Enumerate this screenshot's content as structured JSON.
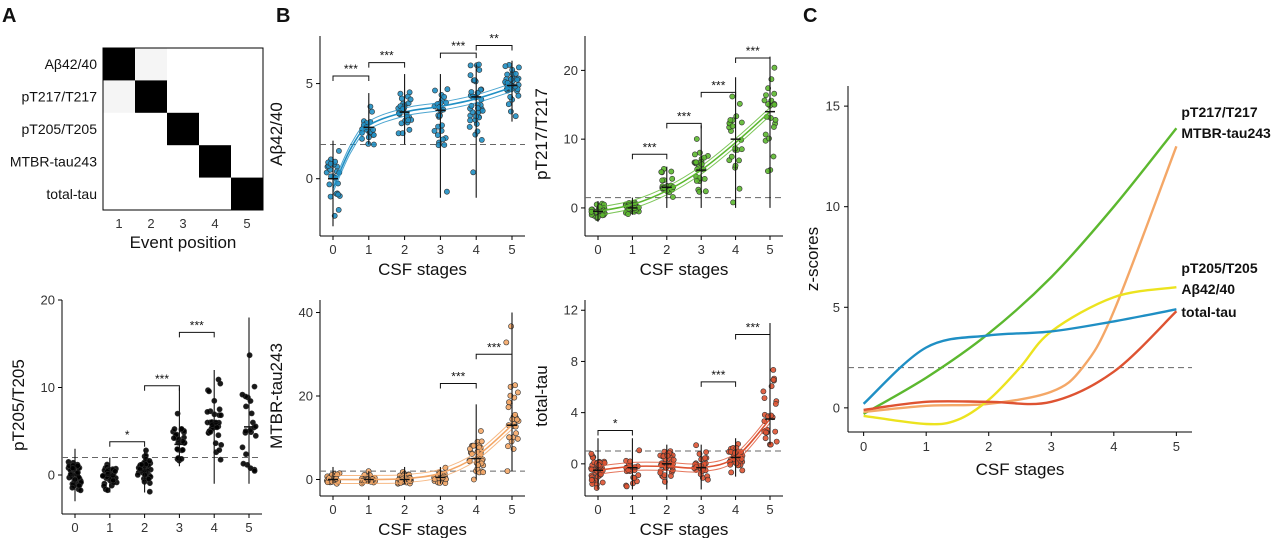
{
  "panels": {
    "a": "A",
    "b": "B",
    "c": "C"
  },
  "colors": {
    "abeta": "#1f8fc4",
    "pt217": "#5cb82f",
    "pt205": "#ece31f",
    "mtbr": "#f4a767",
    "totaltau": "#de5332"
  },
  "chart_data": [
    {
      "panel": "A",
      "type": "heatmap",
      "rows": [
        "Aβ42/40",
        "pT217/T217",
        "pT205/T205",
        "MTBR-tau243",
        "total-tau"
      ],
      "columns": [
        "1",
        "2",
        "3",
        "4",
        "5"
      ],
      "xlabel": "Event position",
      "values": [
        [
          1,
          0.04,
          0,
          0,
          0
        ],
        [
          0.04,
          1,
          0,
          0,
          0
        ],
        [
          0,
          0,
          1,
          0,
          0
        ],
        [
          0,
          0,
          0,
          1,
          0
        ],
        [
          0,
          0,
          0,
          0,
          1
        ]
      ]
    },
    {
      "panel": "A",
      "type": "scatter",
      "marker": "pT205",
      "ylabel": "pT205/T205",
      "xlabel": "CSF stages",
      "x_ticks": [
        "0",
        "1",
        "2",
        "3",
        "4",
        "5"
      ],
      "y_ticks": [
        0,
        10,
        20
      ],
      "ylim": [
        -4,
        20
      ],
      "threshold": 2,
      "stages": [
        {
          "x": 0,
          "median": 0,
          "range": [
            -3,
            3
          ]
        },
        {
          "x": 1,
          "median": 0,
          "range": [
            -2,
            2
          ]
        },
        {
          "x": 2,
          "median": 0.5,
          "range": [
            -2,
            3
          ]
        },
        {
          "x": 3,
          "median": 3.5,
          "range": [
            1,
            10
          ]
        },
        {
          "x": 4,
          "median": 6,
          "range": [
            -1,
            12
          ]
        },
        {
          "x": 5,
          "median": 5.5,
          "range": [
            -1,
            18
          ]
        }
      ],
      "trend": [
        [
          0,
          0.5
        ],
        [
          1,
          0.4
        ],
        [
          2,
          1.5
        ],
        [
          3,
          4
        ],
        [
          4,
          5.5
        ],
        [
          5,
          6
        ]
      ],
      "brackets": [
        {
          "from": 1,
          "to": 2,
          "label": "*",
          "y": 3.8
        },
        {
          "from": 2,
          "to": 3,
          "label": "***",
          "y": 10.2
        },
        {
          "from": 3,
          "to": 4,
          "label": "***",
          "y": 16.3
        }
      ]
    },
    {
      "panel": "B",
      "type": "scatter",
      "marker": "abeta",
      "ylabel": "Aβ42/40",
      "xlabel": "CSF stages",
      "x_ticks": [
        "0",
        "1",
        "2",
        "3",
        "4",
        "5"
      ],
      "y_ticks": [
        0,
        5
      ],
      "ylim": [
        -2.8,
        7.5
      ],
      "threshold": 1.8,
      "stages": [
        {
          "x": 0,
          "median": 0,
          "range": [
            -2.5,
            2
          ]
        },
        {
          "x": 1,
          "median": 2.7,
          "range": [
            1.8,
            4.5
          ]
        },
        {
          "x": 2,
          "median": 3.5,
          "range": [
            1.8,
            5.5
          ]
        },
        {
          "x": 3,
          "median": 3.6,
          "range": [
            -1,
            5.5
          ]
        },
        {
          "x": 4,
          "median": 4.3,
          "range": [
            -1,
            6
          ]
        },
        {
          "x": 5,
          "median": 4.9,
          "range": [
            3,
            6.2
          ]
        }
      ],
      "trend": [
        [
          0,
          -0.5
        ],
        [
          0.5,
          1.6
        ],
        [
          1,
          2.8
        ],
        [
          2,
          3.5
        ],
        [
          3,
          3.8
        ],
        [
          4,
          4.2
        ],
        [
          5,
          4.8
        ]
      ],
      "brackets": [
        {
          "from": 0,
          "to": 1,
          "label": "***",
          "y": 5.4
        },
        {
          "from": 1,
          "to": 2,
          "label": "***",
          "y": 6.1
        },
        {
          "from": 3,
          "to": 4,
          "label": "***",
          "y": 6.6
        },
        {
          "from": 4,
          "to": 5,
          "label": "**",
          "y": 7.0
        }
      ]
    },
    {
      "panel": "B",
      "type": "scatter",
      "marker": "pt217",
      "ylabel": "pT217/T217",
      "xlabel": "CSF stages",
      "x_ticks": [
        "0",
        "1",
        "2",
        "3",
        "4",
        "5"
      ],
      "y_ticks": [
        0,
        10,
        20
      ],
      "ylim": [
        -3.5,
        25
      ],
      "threshold": 1.5,
      "stages": [
        {
          "x": 0,
          "median": -0.5,
          "range": [
            -2,
            1
          ]
        },
        {
          "x": 1,
          "median": 0,
          "range": [
            -1,
            1.5
          ]
        },
        {
          "x": 2,
          "median": 3,
          "range": [
            0,
            6
          ]
        },
        {
          "x": 3,
          "median": 5.5,
          "range": [
            0,
            12
          ]
        },
        {
          "x": 4,
          "median": 10,
          "range": [
            0,
            19
          ]
        },
        {
          "x": 5,
          "median": 14,
          "range": [
            0,
            22
          ]
        }
      ],
      "trend": [
        [
          0,
          -0.5
        ],
        [
          1,
          0.5
        ],
        [
          2,
          2.5
        ],
        [
          3,
          5.5
        ],
        [
          4,
          9.5
        ],
        [
          5,
          14
        ]
      ],
      "brackets": [
        {
          "from": 1,
          "to": 2,
          "label": "***",
          "y": 7.8
        },
        {
          "from": 2,
          "to": 3,
          "label": "***",
          "y": 12.3
        },
        {
          "from": 3,
          "to": 4,
          "label": "***",
          "y": 16.8
        },
        {
          "from": 4,
          "to": 5,
          "label": "***",
          "y": 21.8
        }
      ]
    },
    {
      "panel": "B",
      "type": "scatter",
      "marker": "mtbr",
      "ylabel": "MTBR-tau243",
      "xlabel": "CSF stages",
      "x_ticks": [
        "0",
        "1",
        "2",
        "3",
        "4",
        "5"
      ],
      "y_ticks": [
        0,
        20,
        40
      ],
      "ylim": [
        -3,
        43
      ],
      "threshold": 2,
      "stages": [
        {
          "x": 0,
          "median": 0,
          "range": [
            -1,
            3
          ]
        },
        {
          "x": 1,
          "median": 0,
          "range": [
            -1,
            2
          ]
        },
        {
          "x": 2,
          "median": 0,
          "range": [
            -1,
            3
          ]
        },
        {
          "x": 3,
          "median": 0.5,
          "range": [
            -1,
            3
          ]
        },
        {
          "x": 4,
          "median": 5,
          "range": [
            0,
            18
          ]
        },
        {
          "x": 5,
          "median": 13,
          "range": [
            2,
            40
          ]
        }
      ],
      "trend": [
        [
          0,
          0
        ],
        [
          1,
          0
        ],
        [
          2,
          0.2
        ],
        [
          3,
          1.5
        ],
        [
          4,
          5.5
        ],
        [
          5,
          13
        ]
      ],
      "brackets": [
        {
          "from": 3,
          "to": 4,
          "label": "***",
          "y": 23
        },
        {
          "from": 4,
          "to": 5,
          "label": "***",
          "y": 30
        }
      ]
    },
    {
      "panel": "B",
      "type": "scatter",
      "marker": "totaltau",
      "ylabel": "total-tau",
      "xlabel": "CSF stages",
      "x_ticks": [
        "0",
        "1",
        "2",
        "3",
        "4",
        "5"
      ],
      "y_ticks": [
        0,
        4,
        8,
        12
      ],
      "ylim": [
        -2.2,
        12.8
      ],
      "threshold": 1,
      "stages": [
        {
          "x": 0,
          "median": -0.5,
          "range": [
            -2,
            2
          ]
        },
        {
          "x": 1,
          "median": -0.3,
          "range": [
            -2,
            2
          ]
        },
        {
          "x": 2,
          "median": 0,
          "range": [
            -2,
            1.5
          ]
        },
        {
          "x": 3,
          "median": -0.3,
          "range": [
            -2,
            1.5
          ]
        },
        {
          "x": 4,
          "median": 0.5,
          "range": [
            -1,
            2
          ]
        },
        {
          "x": 5,
          "median": 3.5,
          "range": [
            1.5,
            11
          ]
        }
      ],
      "trend": [
        [
          0,
          -0.5
        ],
        [
          1,
          -0.2
        ],
        [
          2,
          -0.2
        ],
        [
          3,
          -0.3
        ],
        [
          4,
          0.5
        ],
        [
          5,
          3.5
        ]
      ],
      "brackets": [
        {
          "from": 0,
          "to": 1,
          "label": "*",
          "y": 2.6
        },
        {
          "from": 3,
          "to": 4,
          "label": "***",
          "y": 6.4
        },
        {
          "from": 4,
          "to": 5,
          "label": "***",
          "y": 10.1
        }
      ]
    },
    {
      "panel": "C",
      "type": "line",
      "xlabel": "CSF stages",
      "ylabel": "z-scores",
      "x_ticks": [
        0,
        1,
        2,
        3,
        4,
        5
      ],
      "y_ticks": [
        0,
        5,
        10,
        15
      ],
      "xlim": [
        -0.25,
        5.25
      ],
      "ylim": [
        -1.2,
        16
      ],
      "threshold": 2,
      "series": [
        {
          "name": "pT217/T217",
          "color_key": "pt217",
          "points": [
            [
              0,
              -0.3
            ],
            [
              1,
              1.5
            ],
            [
              2,
              3.7
            ],
            [
              3,
              6.5
            ],
            [
              4,
              10
            ],
            [
              5,
              13.9
            ]
          ]
        },
        {
          "name": "MTBR-tau243",
          "color_key": "mtbr",
          "points": [
            [
              0,
              -0.2
            ],
            [
              1,
              0.1
            ],
            [
              2,
              0.2
            ],
            [
              3,
              0.8
            ],
            [
              3.5,
              2.0
            ],
            [
              4,
              4.8
            ],
            [
              5,
              13
            ]
          ]
        },
        {
          "name": "pT205/T205",
          "color_key": "pt205",
          "points": [
            [
              0,
              -0.4
            ],
            [
              1,
              -0.8
            ],
            [
              1.5,
              -0.6
            ],
            [
              2,
              0.4
            ],
            [
              2.5,
              2.0
            ],
            [
              3,
              3.8
            ],
            [
              4,
              5.5
            ],
            [
              5,
              6
            ]
          ]
        },
        {
          "name": "Aβ42/40",
          "color_key": "abeta",
          "points": [
            [
              0,
              0.2
            ],
            [
              1,
              3.0
            ],
            [
              2,
              3.6
            ],
            [
              3,
              3.8
            ],
            [
              4,
              4.3
            ],
            [
              5,
              4.9
            ]
          ]
        },
        {
          "name": "total-tau",
          "color_key": "totaltau",
          "points": [
            [
              0,
              -0.1
            ],
            [
              1,
              0.3
            ],
            [
              2,
              0.3
            ],
            [
              3,
              0.3
            ],
            [
              4,
              1.8
            ],
            [
              5,
              4.8
            ]
          ]
        }
      ]
    }
  ]
}
